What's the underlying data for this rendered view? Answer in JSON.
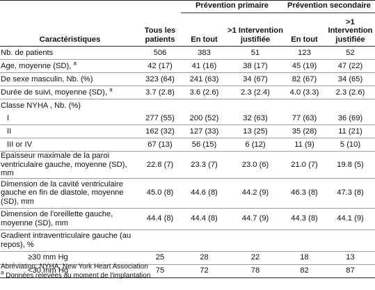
{
  "header": {
    "group_primary": "Prévention primaire",
    "group_secondary": "Prévention secondaire",
    "col_characteristics": "Caractéristiques",
    "col_all": "Tous les patients",
    "col_total_primary": "En tout",
    "col_justified_primary": ">1 Intervention justifiée",
    "col_total_secondary": "En tout",
    "col_justified_secondary": ">1 Intervention justifiée"
  },
  "rows": [
    {
      "label": "Nb. de patients",
      "v": [
        "506",
        "383",
        "51",
        "123",
        "52"
      ]
    },
    {
      "label": "Age, moyenne (SD),",
      "sup": "a",
      "v": [
        "42 (17)",
        "41 (16)",
        "38 (17)",
        "45 (19)",
        "47 (22)"
      ]
    },
    {
      "label": "De sexe masculin, Nb. (%)",
      "v": [
        "323 (64)",
        "241 (63)",
        "34 (67)",
        "82 (67)",
        "34 (65)"
      ]
    },
    {
      "label": "Durée de suivi, moyenne (SD),",
      "sup": "a",
      "v": [
        "3.7 (2.8)",
        "3.6 (2.6)",
        "2.3 (2.4)",
        "4.0 (3.3)",
        "2.3 (2.6)"
      ]
    },
    {
      "label": "Classe NYHA , Nb. (%)",
      "v": [
        "",
        "",
        "",
        "",
        ""
      ]
    },
    {
      "label": "I",
      "v": [
        "277 (55)",
        "200 (52)",
        "32 (63)",
        "77 (63)",
        "36 (69)"
      ]
    },
    {
      "label": "II",
      "v": [
        "162 (32)",
        "127 (33)",
        "13 (25)",
        "35 (28)",
        "11 (21)"
      ]
    },
    {
      "label": "III or IV",
      "v": [
        "67 (13)",
        "56 (15)",
        "6 (12)",
        "11 (9)",
        "5 (10)"
      ]
    },
    {
      "label": "Epaisseur maximale de la paroi ventriculaire gauche, moyenne (SD), mm",
      "v": [
        "22.8 (7)",
        "23.3 (7)",
        "23.0 (6)",
        "21.0 (7)",
        "19.8 (5)"
      ]
    },
    {
      "label": "Dimension de la cavité ventriculaire gauche en fin de diastole, moyenne (SD), mm",
      "v": [
        "45.0 (8)",
        "44.6 (8)",
        "44.2 (9)",
        "46.3 (8)",
        "47.3 (8)"
      ]
    },
    {
      "label": "Dimension de l'oreillette gauche, moyenne (SD), mm",
      "v": [
        "44.4 (8)",
        "44.4 (8)",
        "44.7 (9)",
        "44.3 (8)",
        "44.1 (9)"
      ]
    },
    {
      "label": "Gradient intraventriculaire gauche (au repos), %",
      "v": [
        "",
        "",
        "",
        "",
        ""
      ]
    },
    {
      "label": "≥30 mm Hg",
      "v": [
        "25",
        "28",
        "22",
        "18",
        "13"
      ]
    },
    {
      "label": "<30 mm Hg",
      "v": [
        "75",
        "72",
        "78",
        "82",
        "87"
      ]
    }
  ],
  "footnotes": {
    "abbrev": "Abréviation: NYHA, New York Heart Association",
    "note_marker": "a",
    "note_a": "Données relevées au moment de l'implantation"
  }
}
